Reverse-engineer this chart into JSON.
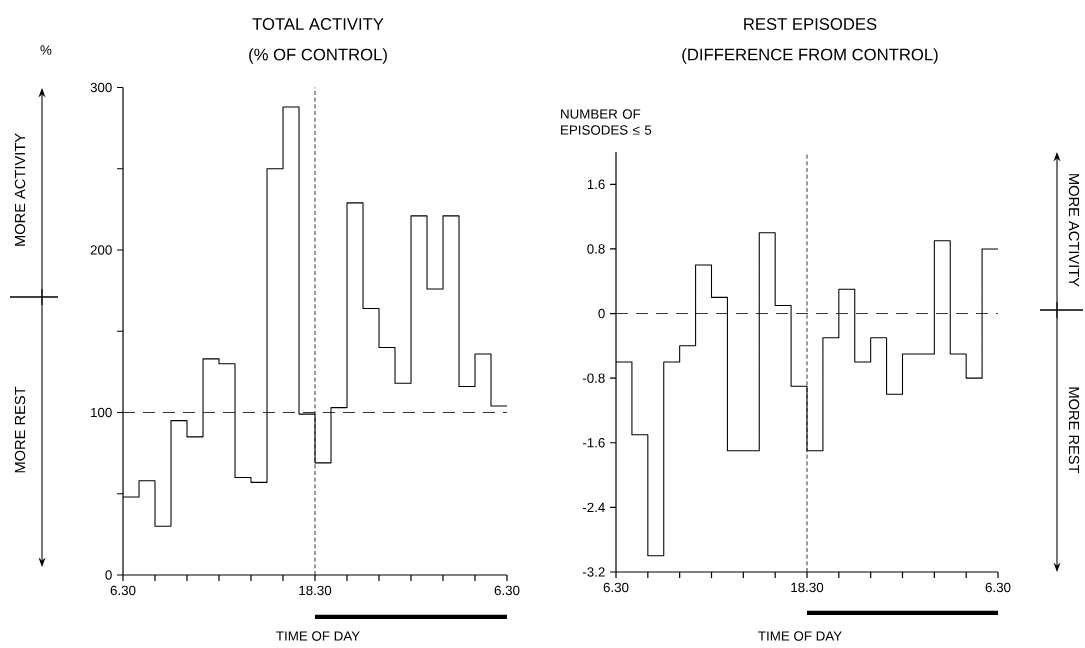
{
  "chart_data": [
    {
      "type": "step",
      "title": "TOTAL ACTIVITY",
      "subtitle": "(% OF CONTROL)",
      "xlabel": "TIME OF DAY",
      "ylabel": "%",
      "categories": [
        "6.30",
        null,
        null,
        null,
        null,
        null,
        null,
        null,
        null,
        null,
        null,
        null,
        "18.30",
        null,
        null,
        null,
        null,
        null,
        null,
        null,
        null,
        null,
        null,
        null,
        "6.30"
      ],
      "series": [
        {
          "color": "#000000",
          "values": [
            48,
            58,
            30,
            95,
            85,
            133,
            130,
            60,
            57,
            250,
            288,
            99,
            69,
            103,
            229,
            164,
            140,
            118,
            221,
            176,
            221,
            116,
            136,
            104,
            104
          ]
        }
      ],
      "ylim": [
        0,
        300
      ],
      "yticks": [
        0,
        {
          "value": 50,
          "label": null
        },
        100,
        {
          "value": 150,
          "label": null
        },
        200,
        {
          "value": 250,
          "label": null
        },
        300
      ],
      "ref_lines": [
        {
          "axis": "y",
          "value": 100,
          "line_style": "dashed"
        }
      ],
      "annotations": [
        "MORE ACTIVITY",
        "MORE REST"
      ]
    },
    {
      "type": "step",
      "title": "REST EPISODES",
      "subtitle": "(DIFFERENCE FROM CONTROL)",
      "xlabel": "TIME OF DAY",
      "ylabel": "NUMBER OF EPISODES ≤ 5",
      "categories": [
        "6.30",
        null,
        null,
        null,
        null,
        null,
        null,
        null,
        null,
        null,
        null,
        null,
        "18.30",
        null,
        null,
        null,
        null,
        null,
        null,
        null,
        null,
        null,
        null,
        null,
        "6.30"
      ],
      "series": [
        {
          "color": "#000000",
          "values": [
            -0.6,
            -1.5,
            -3.0,
            -0.6,
            -0.4,
            0.6,
            0.2,
            -1.7,
            -1.7,
            1.0,
            0.1,
            -0.9,
            -1.7,
            -0.3,
            0.3,
            -0.6,
            -0.3,
            -1.0,
            -0.5,
            -0.5,
            0.9,
            -0.5,
            -0.8,
            0.8,
            0.8
          ]
        }
      ],
      "ylim": [
        -3.2,
        2.0
      ],
      "yticks": [
        -3.2,
        -2.4,
        -1.6,
        -0.8,
        0,
        0.8,
        1.6
      ],
      "ref_lines": [
        {
          "axis": "y",
          "value": 0,
          "line_style": "dashed"
        }
      ],
      "annotations": [
        "MORE ACTIVITY",
        "MORE REST"
      ]
    }
  ]
}
